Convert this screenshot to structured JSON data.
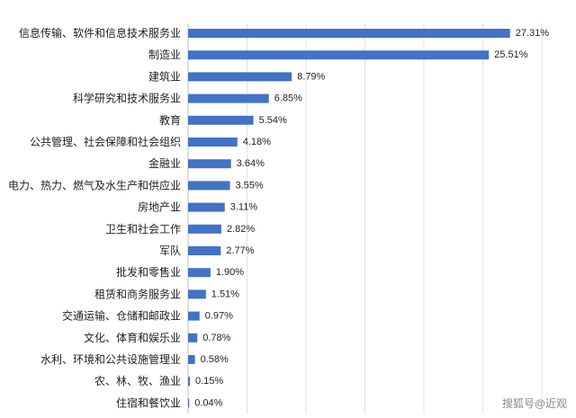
{
  "chart_data": {
    "type": "bar",
    "orientation": "horizontal",
    "categories": [
      "信息传输、软件和信息技术服务业",
      "制造业",
      "建筑业",
      "科学研究和技术服务业",
      "教育",
      "公共管理、社会保障和社会组织",
      "金融业",
      "电力、热力、燃气及水生产和供应业",
      "房地产业",
      "卫生和社会工作",
      "军队",
      "批发和零售业",
      "租赁和商务服务业",
      "交通运输、仓储和邮政业",
      "文化、体育和娱乐业",
      "水利、环境和公共设施管理业",
      "农、林、牧、渔业",
      "住宿和餐饮业"
    ],
    "values": [
      27.31,
      25.51,
      8.79,
      6.85,
      5.54,
      4.18,
      3.64,
      3.55,
      3.11,
      2.82,
      2.77,
      1.9,
      1.51,
      0.97,
      0.78,
      0.58,
      0.15,
      0.04
    ],
    "value_labels": [
      "27.31%",
      "25.51%",
      "8.79%",
      "6.85%",
      "5.54%",
      "4.18%",
      "3.64%",
      "3.55%",
      "3.11%",
      "2.82%",
      "2.77%",
      "1.90%",
      "1.51%",
      "0.97%",
      "0.78%",
      "0.58%",
      "0.15%",
      "0.04%"
    ],
    "xlim": [
      0,
      30
    ],
    "grid": true,
    "bar_color": "#4472C4"
  },
  "watermark": "搜狐号@近观"
}
